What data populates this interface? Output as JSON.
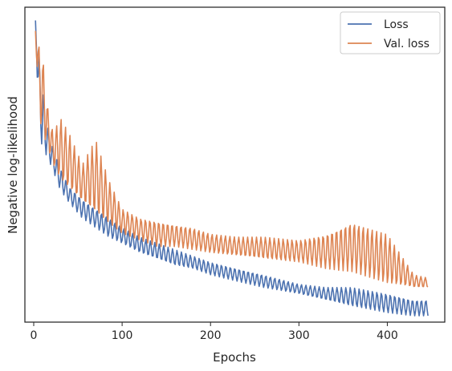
{
  "chart_data": {
    "type": "line",
    "title": "",
    "xlabel": "Epochs",
    "ylabel": "Negative log-likelihood",
    "xlim": [
      -10,
      465
    ],
    "ylim": [
      0,
      100
    ],
    "xticks": [
      0,
      100,
      200,
      300,
      400
    ],
    "y_tick_labels_shown": false,
    "grid": false,
    "legend_placement": "top-right",
    "series": [
      {
        "name": "Loss",
        "color": "#4c72b0",
        "oscillating": true,
        "x": [
          2,
          6,
          10,
          16,
          22,
          30,
          40,
          55,
          70,
          85,
          100,
          120,
          140,
          160,
          180,
          200,
          230,
          260,
          300,
          330,
          360,
          400,
          430,
          446
        ],
        "envelope_low": [
          95,
          60,
          55,
          52,
          48,
          42,
          38,
          33,
          30,
          27,
          25,
          22,
          20,
          18,
          17,
          15,
          13,
          11,
          9,
          7,
          5,
          3,
          2,
          2
        ],
        "envelope_high": [
          96,
          85,
          75,
          62,
          55,
          49,
          43,
          39,
          36,
          33,
          30,
          27,
          25,
          23,
          21,
          19,
          17,
          15,
          12,
          11,
          11,
          9,
          7,
          7
        ]
      },
      {
        "name": "Val. loss",
        "color": "#dd8452",
        "oscillating": true,
        "x": [
          2,
          6,
          10,
          16,
          22,
          30,
          40,
          55,
          70,
          85,
          100,
          120,
          140,
          160,
          180,
          200,
          230,
          260,
          300,
          330,
          360,
          400,
          430,
          446
        ],
        "envelope_low": [
          92,
          65,
          60,
          55,
          50,
          45,
          42,
          38,
          34,
          31,
          28,
          26,
          24,
          24,
          23,
          22,
          21,
          20,
          19,
          17,
          16,
          12,
          11,
          11
        ],
        "envelope_high": [
          93,
          88,
          85,
          68,
          60,
          65,
          60,
          50,
          58,
          45,
          36,
          33,
          32,
          31,
          30,
          28,
          27,
          27,
          26,
          28,
          32,
          28,
          15,
          14
        ]
      }
    ]
  }
}
